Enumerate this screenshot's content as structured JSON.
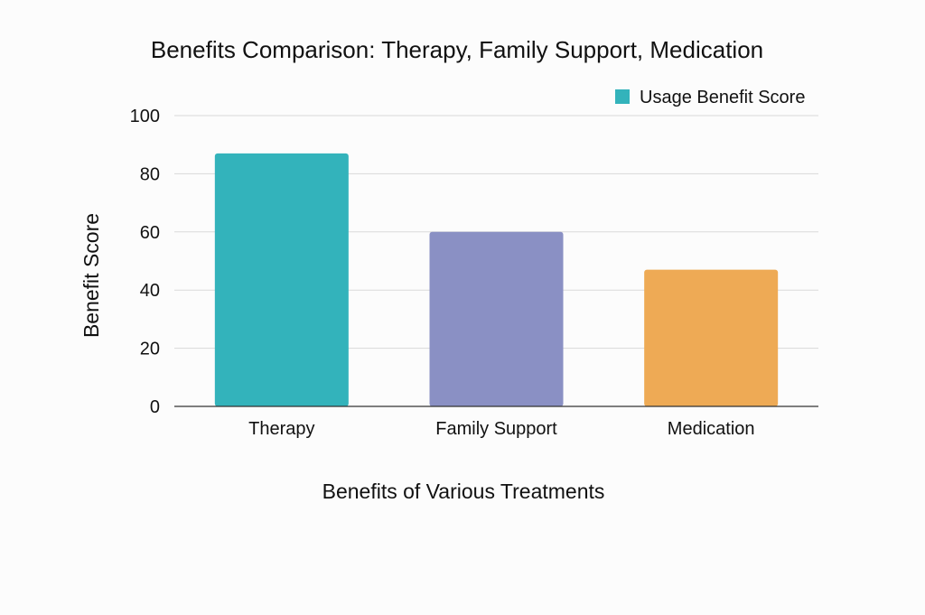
{
  "chart_data": {
    "type": "bar",
    "title": "Benefits Comparison: Therapy, Family Support, Medication",
    "xlabel": "Benefits of Various Treatments",
    "ylabel": "Benefit Score",
    "categories": [
      "Therapy",
      "Family Support",
      "Medication"
    ],
    "series": [
      {
        "name": "Usage Benefit Score",
        "values": [
          87,
          60,
          47
        ],
        "colors": [
          "#33b3bb",
          "#8a90c4",
          "#eeaa55"
        ]
      }
    ],
    "ylim": [
      0,
      100
    ],
    "yticks": [
      0,
      20,
      40,
      60,
      80,
      100
    ],
    "grid": true,
    "legend_position": "top-right",
    "legend_color": "#33b3bb"
  }
}
